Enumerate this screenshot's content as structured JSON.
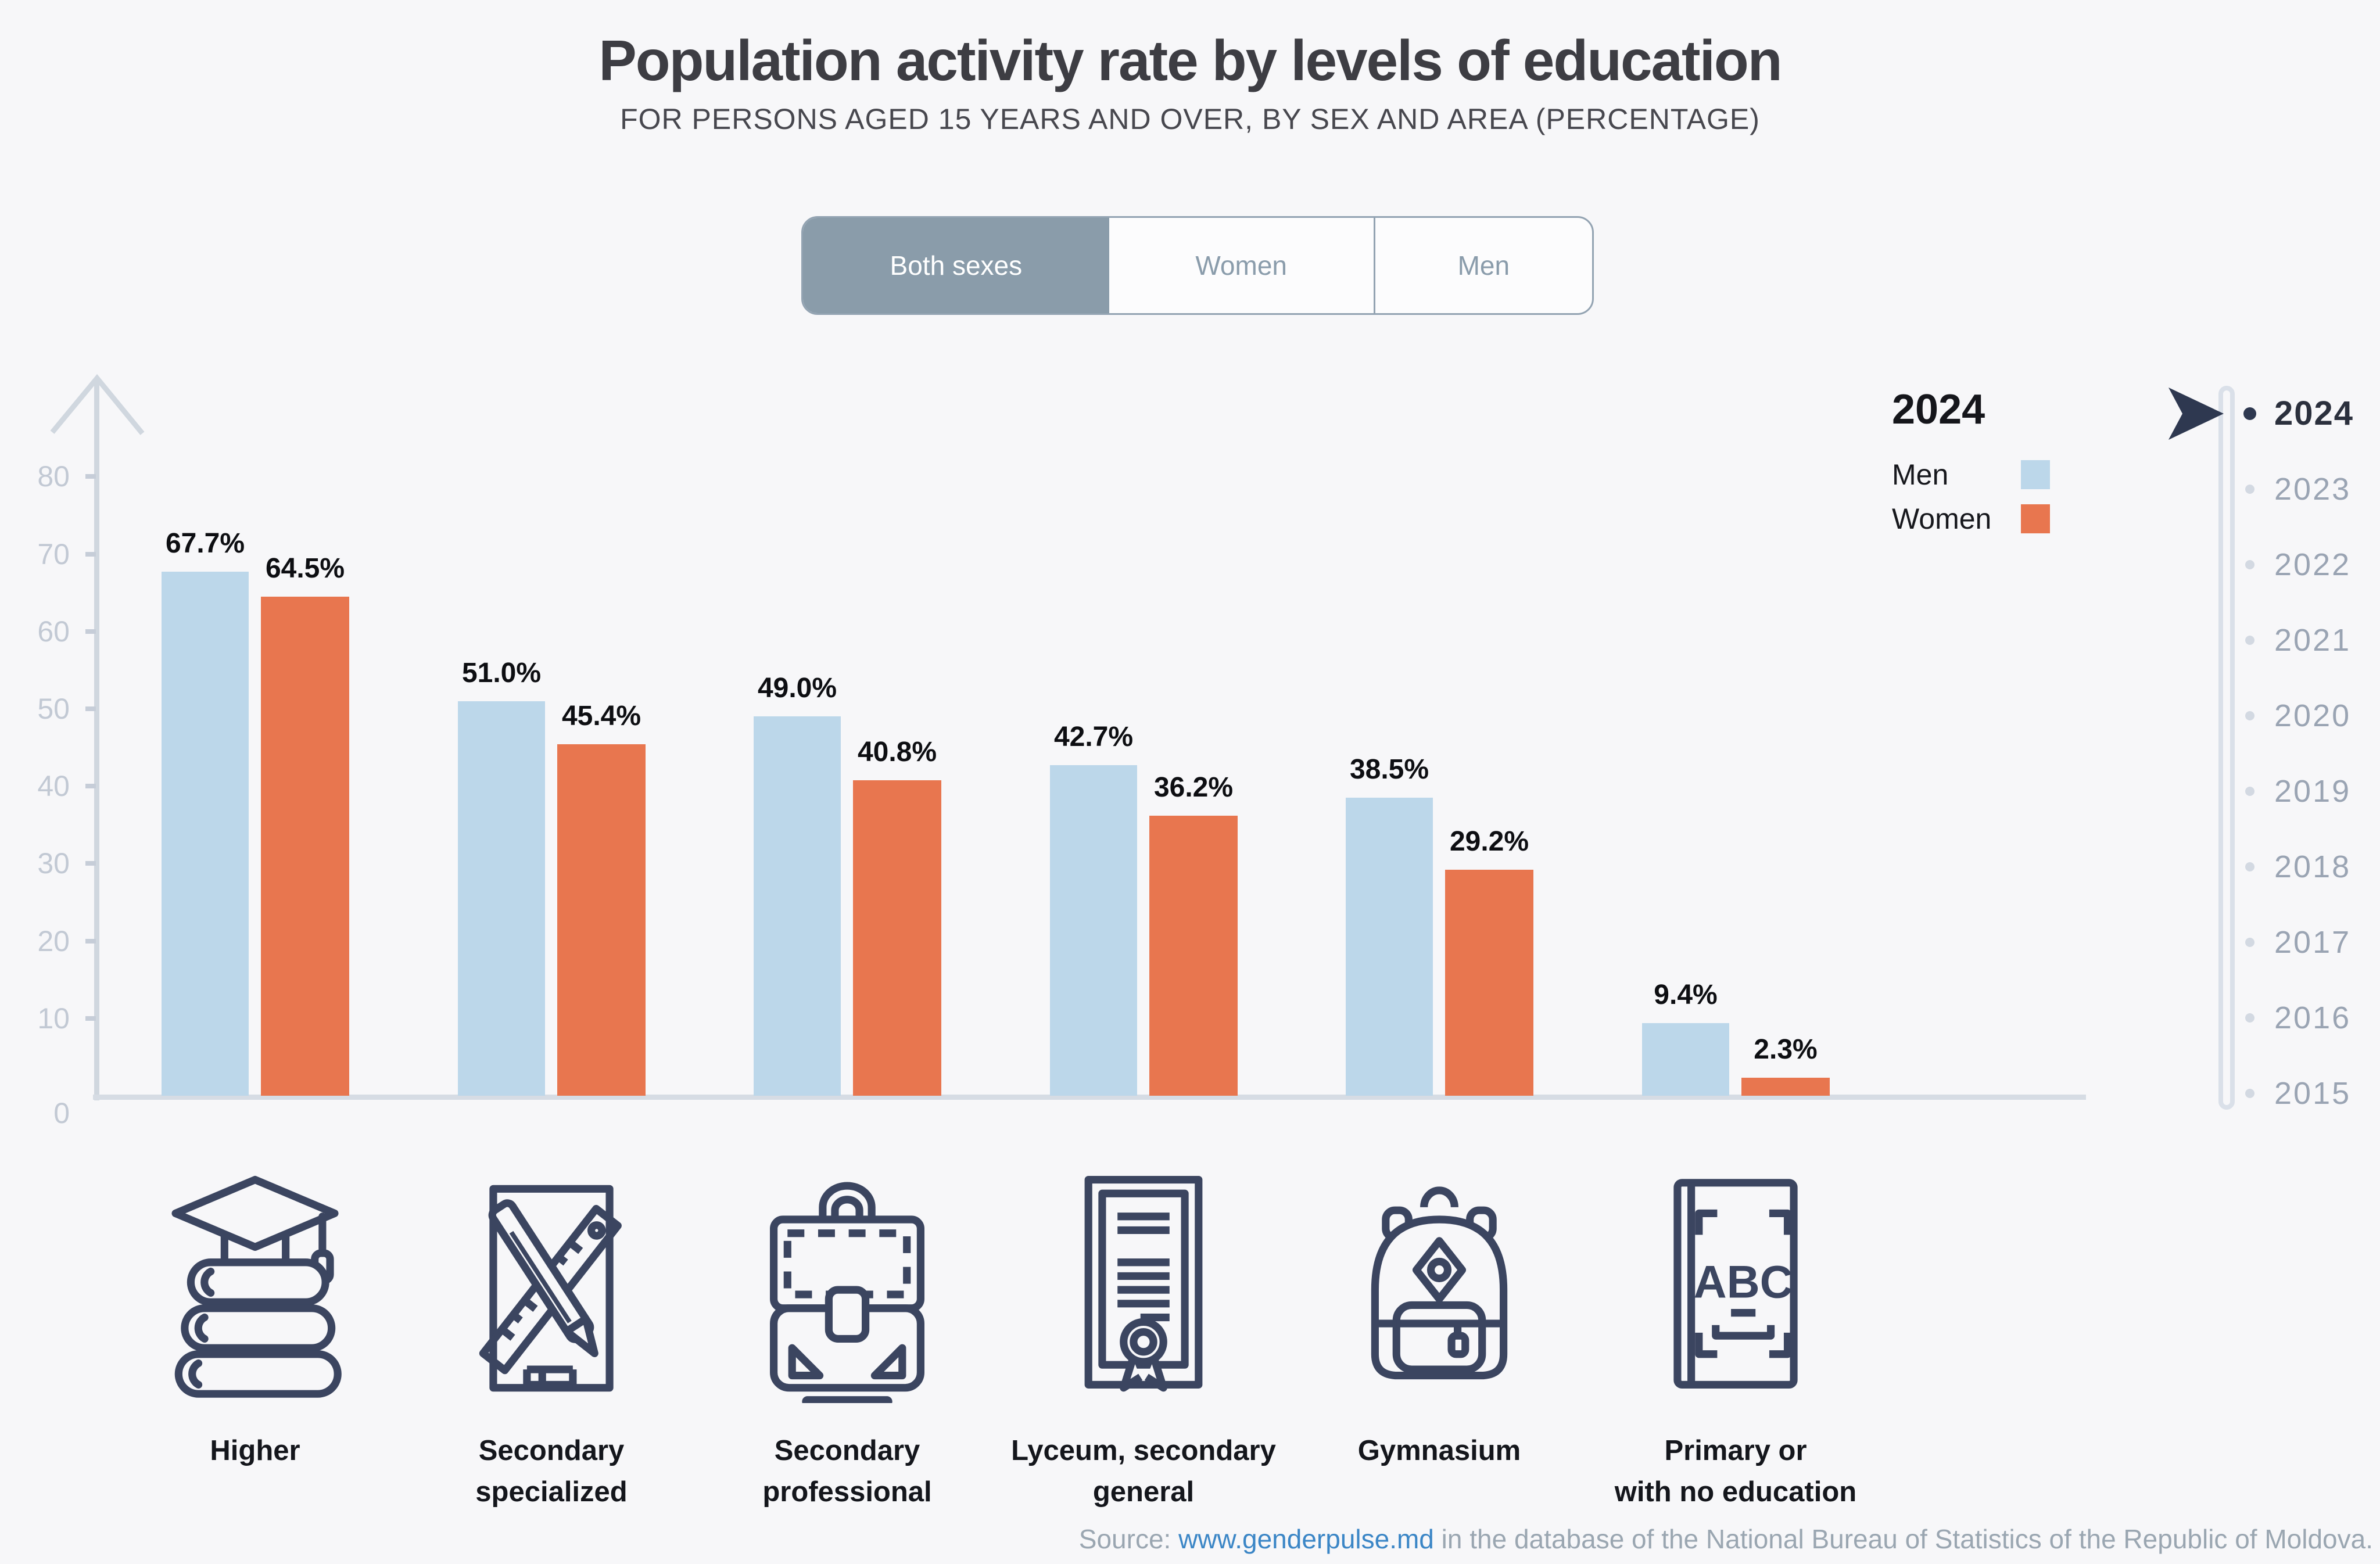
{
  "title": "Population activity rate by levels of education",
  "subtitle": "FOR PERSONS AGED 15 YEARS AND OVER, BY SEX AND AREA (PERCENTAGE)",
  "toggle": {
    "options": [
      {
        "label": "Both sexes",
        "selected": true
      },
      {
        "label": "Women",
        "selected": false
      },
      {
        "label": "Men",
        "selected": false
      }
    ]
  },
  "legend": {
    "year": "2024",
    "items": [
      {
        "label": "Men",
        "color": "#bcd7ea"
      },
      {
        "label": "Women",
        "color": "#e8764f"
      }
    ]
  },
  "timeline": {
    "selected": "2024",
    "years": [
      "2024",
      "2023",
      "2022",
      "2021",
      "2020",
      "2019",
      "2018",
      "2017",
      "2016",
      "2015"
    ]
  },
  "chart_data": {
    "type": "bar",
    "title": "Population activity rate by levels of education",
    "subtitle": "For persons aged 15 years and over, by sex and area (percentage)",
    "year": "2024",
    "categories": [
      "Higher",
      "Secondary specialized",
      "Secondary professional",
      "Lyceum, secondary general",
      "Gymnasium",
      "Primary or with no education"
    ],
    "series": [
      {
        "name": "Men",
        "color": "#bcd7ea",
        "values": [
          67.7,
          51.0,
          49.0,
          42.7,
          38.5,
          9.4
        ]
      },
      {
        "name": "Women",
        "color": "#e8764f",
        "values": [
          64.5,
          45.4,
          40.8,
          36.2,
          29.2,
          2.3
        ]
      }
    ],
    "value_suffix": "%",
    "ylim": [
      0,
      80
    ],
    "yticks": [
      0,
      10,
      20,
      30,
      40,
      50,
      60,
      70,
      80
    ],
    "grid": false,
    "legend_position": "top-right"
  },
  "categories": [
    {
      "label": "Higher",
      "icon": "books-graduation-cap"
    },
    {
      "label": "Secondary\nspecialized",
      "icon": "ruler-pencil"
    },
    {
      "label": "Secondary\nprofessional",
      "icon": "briefcase"
    },
    {
      "label": "Lyceum, secondary\ngeneral",
      "icon": "diploma"
    },
    {
      "label": "Gymnasium",
      "icon": "backpack"
    },
    {
      "label": "Primary or\nwith no education",
      "icon": "abc-book"
    }
  ],
  "source": {
    "prefix": "Source: ",
    "link": "www.genderpulse.md",
    "suffix": " in the database of the National Bureau of Statistics of the Republic of Moldova."
  },
  "colors": {
    "bar_men": "#bcd7ea",
    "bar_women": "#e8764f",
    "accent_dark": "#2e3850",
    "axis": "#d0d7df",
    "icon_stroke": "#3b4560",
    "link": "#3b86c6"
  }
}
